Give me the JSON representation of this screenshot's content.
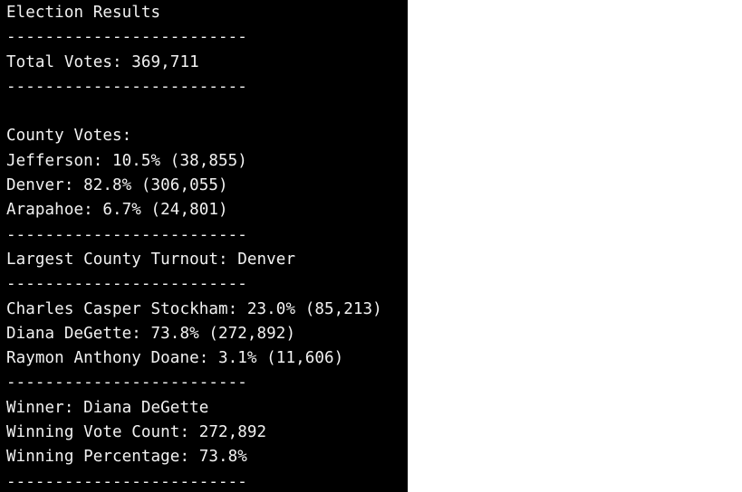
{
  "colors": {
    "terminal_bg": "#000000",
    "terminal_fg": "#f2f2f2",
    "page_bg": "#ffffff"
  },
  "terminal": {
    "title": "Election Results",
    "separator": "-------------------------",
    "total_votes": "Total Votes: 369,711",
    "county_header": "County Votes:",
    "counties": [
      "Jefferson: 10.5% (38,855)",
      "Denver: 82.8% (306,055)",
      "Arapahoe: 6.7% (24,801)"
    ],
    "largest_county": "Largest County Turnout: Denver",
    "candidates": [
      "Charles Casper Stockham: 23.0% (85,213)",
      "Diana DeGette: 73.8% (272,892)",
      "Raymon Anthony Doane: 3.1% (11,606)"
    ],
    "winner": "Winner: Diana DeGette",
    "winning_vote_count": "Winning Vote Count: 272,892",
    "winning_percentage": "Winning Percentage: 73.8%"
  }
}
